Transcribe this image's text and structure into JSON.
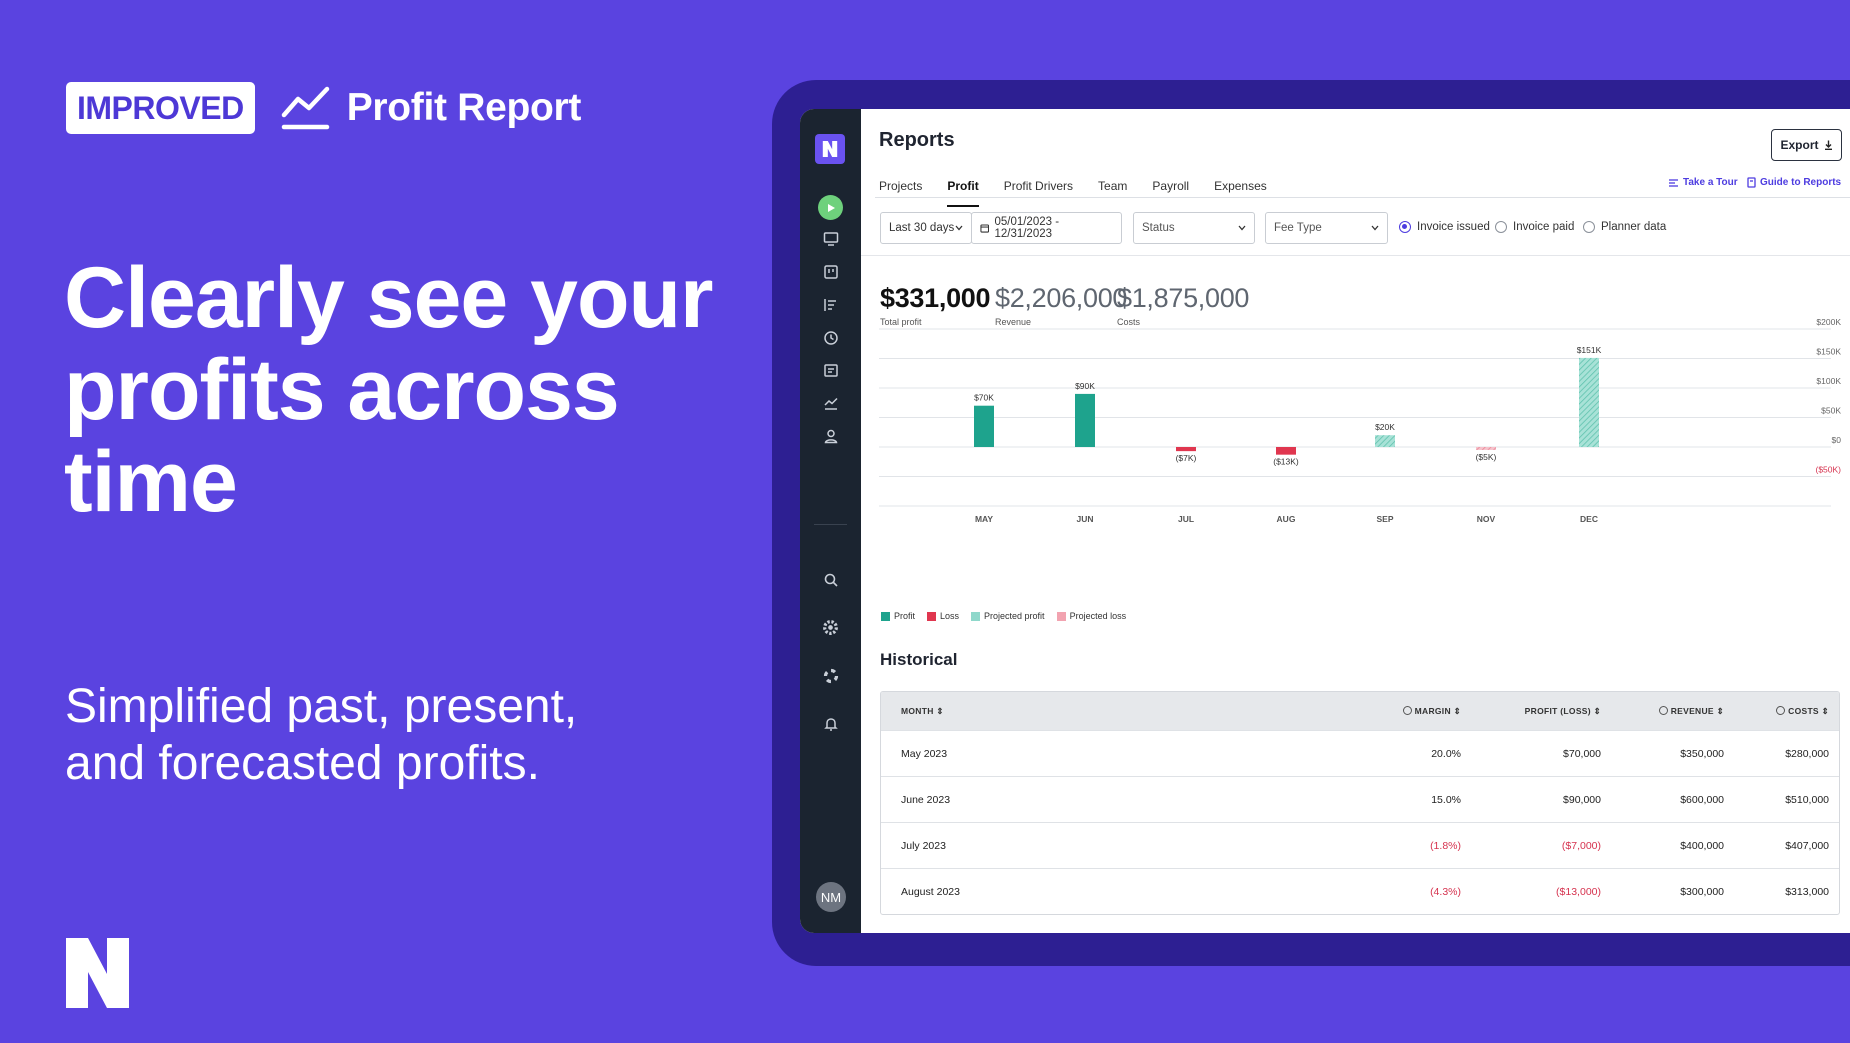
{
  "hero": {
    "badge": "IMPROVED",
    "title": "Profit Report",
    "headline": "Clearly see your profits across time",
    "subline": "Simplified past, present, and forecasted profits."
  },
  "app": {
    "page_title": "Reports",
    "export_label": "Export",
    "tabs": [
      {
        "label": "Projects",
        "active": false
      },
      {
        "label": "Profit",
        "active": true
      },
      {
        "label": "Profit Drivers",
        "active": false
      },
      {
        "label": "Team",
        "active": false
      },
      {
        "label": "Payroll",
        "active": false
      },
      {
        "label": "Expenses",
        "active": false
      }
    ],
    "take_tour": "Take a Tour",
    "guide": "Guide to Reports",
    "filters": {
      "period": "Last 30 days",
      "date_range": "05/01/2023 - 12/31/2023",
      "status_placeholder": "Status",
      "fee_type_placeholder": "Fee Type",
      "radios": [
        {
          "label": "Invoice issued",
          "selected": true
        },
        {
          "label": "Invoice paid",
          "selected": false
        },
        {
          "label": "Planner data",
          "selected": false
        }
      ]
    },
    "metrics": [
      {
        "value": "$331,000",
        "label": "Total profit"
      },
      {
        "value": "$2,206,000",
        "label": "Revenue"
      },
      {
        "value": "$1,875,000",
        "label": "Costs"
      }
    ],
    "avatar_initials": "NM",
    "colors": {
      "accent": "#5a43e0",
      "profit": "#1ea38d",
      "loss": "#e0364f",
      "projected_profit": "#8fd8cb",
      "projected_loss": "#f2a3b0"
    },
    "sidebar_icons": [
      "monitor-icon",
      "board-icon",
      "list-icon",
      "clock-icon",
      "report-icon",
      "trend-icon",
      "person-icon",
      "search-icon",
      "gear-icon",
      "help-icon",
      "bell-icon"
    ]
  },
  "chart_data": {
    "type": "bar",
    "categories": [
      "MAY",
      "JUN",
      "JUL",
      "AUG",
      "SEP",
      "NOV",
      "DEC"
    ],
    "series": [
      {
        "name": "Profit",
        "values": [
          70,
          90,
          null,
          null,
          null,
          null,
          null
        ]
      },
      {
        "name": "Loss",
        "values": [
          null,
          null,
          -7,
          -13,
          null,
          null,
          null
        ]
      },
      {
        "name": "Projected profit",
        "values": [
          null,
          null,
          null,
          null,
          20,
          null,
          151
        ]
      },
      {
        "name": "Projected loss",
        "values": [
          null,
          null,
          null,
          null,
          null,
          -5,
          null
        ]
      }
    ],
    "data_labels": [
      "$70K",
      "$90K",
      "($7K)",
      "($13K)",
      "$20K",
      "($5K)",
      "$151K"
    ],
    "y_ticks": [
      "$200K",
      "$150K",
      "$100K",
      "$50K",
      "$0",
      "($50K)"
    ],
    "y_tick_values": [
      200,
      150,
      100,
      50,
      0,
      -50
    ],
    "ylim": [
      -100,
      200
    ],
    "units": "thousands USD",
    "legend": [
      "Profit",
      "Loss",
      "Projected profit",
      "Projected loss"
    ]
  },
  "historical": {
    "title": "Historical",
    "headers": {
      "month": "MONTH",
      "margin": "MARGIN",
      "profit": "PROFIT (LOSS)",
      "revenue": "REVENUE",
      "costs": "COSTS"
    },
    "rows": [
      {
        "month": "May 2023",
        "margin": "20.0%",
        "profit": "$70,000",
        "revenue": "$350,000",
        "costs": "$280,000",
        "negative": false
      },
      {
        "month": "June 2023",
        "margin": "15.0%",
        "profit": "$90,000",
        "revenue": "$600,000",
        "costs": "$510,000",
        "negative": false
      },
      {
        "month": "July 2023",
        "margin": "(1.8%)",
        "profit": "($7,000)",
        "revenue": "$400,000",
        "costs": "$407,000",
        "negative": true
      },
      {
        "month": "August 2023",
        "margin": "(4.3%)",
        "profit": "($13,000)",
        "revenue": "$300,000",
        "costs": "$313,000",
        "negative": true
      }
    ]
  }
}
